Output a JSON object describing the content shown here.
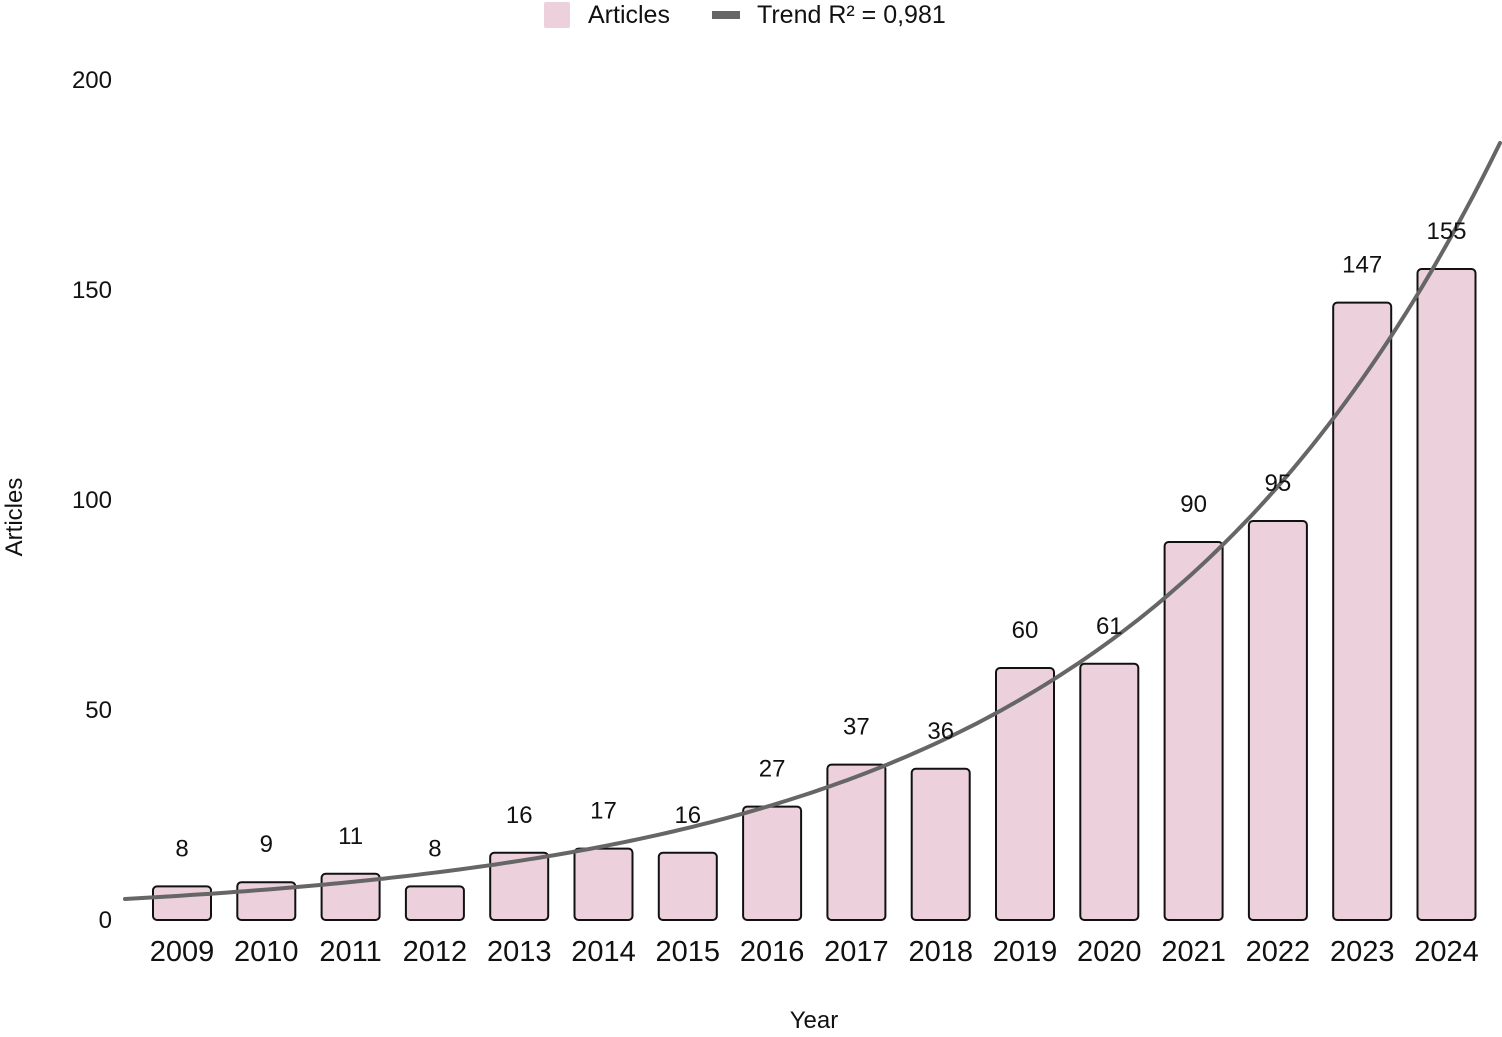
{
  "chart_data": {
    "type": "bar",
    "categories": [
      "2009",
      "2010",
      "2011",
      "2012",
      "2013",
      "2014",
      "2015",
      "2016",
      "2017",
      "2018",
      "2019",
      "2020",
      "2021",
      "2022",
      "2023",
      "2024"
    ],
    "series": [
      {
        "name": "Articles",
        "values": [
          8,
          9,
          11,
          8,
          16,
          17,
          16,
          27,
          37,
          36,
          60,
          61,
          90,
          95,
          147,
          155
        ]
      }
    ],
    "trend": {
      "label": "Trend R² = 0,981",
      "type": "exponential",
      "start_value": 5.0,
      "end_value": 185.0
    },
    "xlabel": "Year",
    "ylabel": "Articles",
    "ylim": [
      0,
      200
    ],
    "yticks": [
      0,
      50,
      100,
      150,
      200
    ],
    "grid": false,
    "legend_position": "top-center",
    "colors": {
      "bar_fill": "#ecd1dc",
      "bar_stroke": "#111111",
      "trend": "#666666"
    }
  }
}
